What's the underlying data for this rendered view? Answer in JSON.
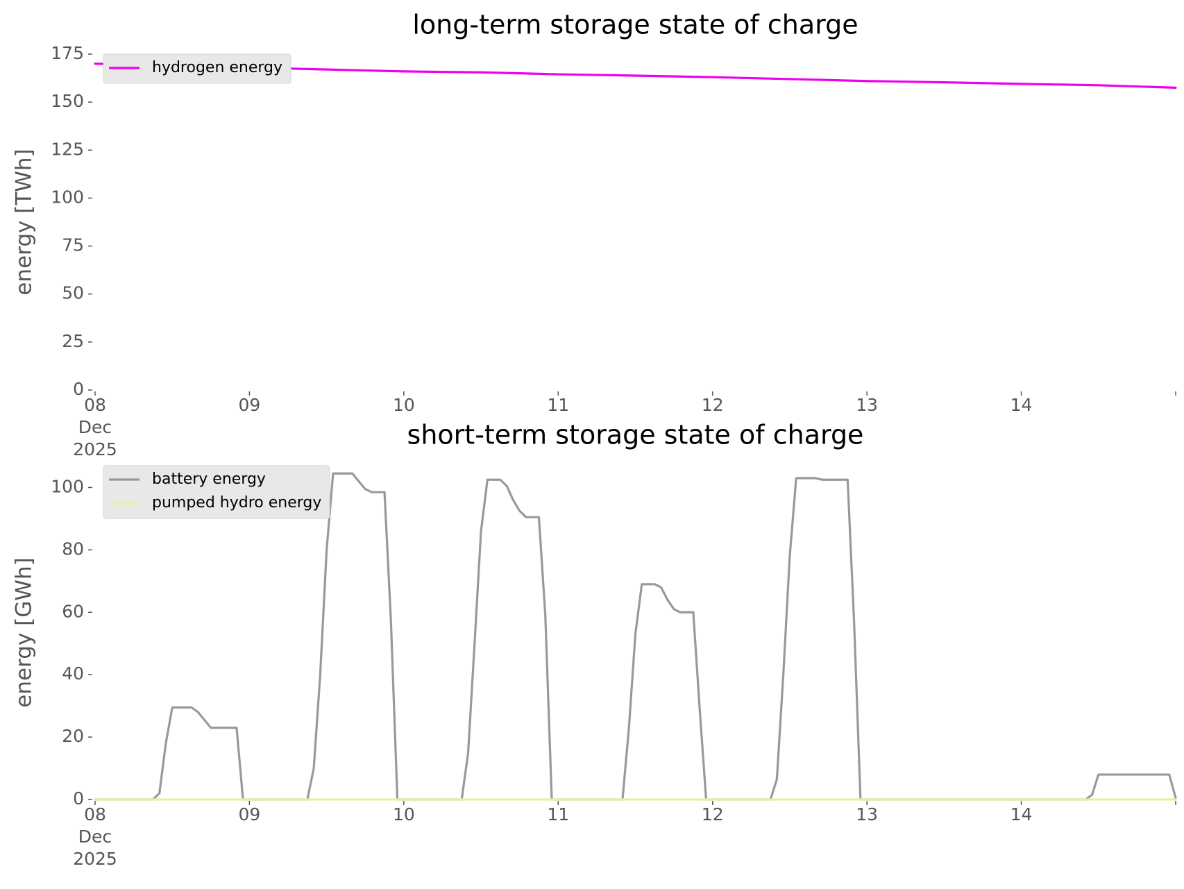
{
  "chart_data": [
    {
      "type": "line",
      "title": "long-term storage state of charge",
      "xlabel": "",
      "ylabel": "energy [TWh]",
      "xlim": [
        "2025-12-08",
        "2025-12-15"
      ],
      "ylim": [
        0,
        175
      ],
      "yticks": [
        0,
        25,
        50,
        75,
        100,
        125,
        150,
        175
      ],
      "xtick_labels": [
        [
          "08",
          "Dec",
          "2025"
        ],
        [
          "09"
        ],
        [
          "10"
        ],
        [
          "11"
        ],
        [
          "12"
        ],
        [
          "13"
        ],
        [
          "14"
        ],
        [
          ""
        ]
      ],
      "grid": false,
      "legend": "top-left",
      "series": [
        {
          "name": "hydrogen energy",
          "color": "#ee00ee",
          "points": [
            [
              "2025-12-08T00:00",
              170
            ],
            [
              "2025-12-08T12:00",
              169
            ],
            [
              "2025-12-09T00:00",
              168
            ],
            [
              "2025-12-09T12:00",
              167
            ],
            [
              "2025-12-10T00:00",
              166
            ],
            [
              "2025-12-10T12:00",
              165.5
            ],
            [
              "2025-12-11T00:00",
              164.5
            ],
            [
              "2025-12-11T12:00",
              163.8
            ],
            [
              "2025-12-12T00:00",
              163
            ],
            [
              "2025-12-12T12:00",
              162
            ],
            [
              "2025-12-13T00:00",
              161
            ],
            [
              "2025-12-13T12:00",
              160.3
            ],
            [
              "2025-12-14T00:00",
              159.5
            ],
            [
              "2025-12-14T12:00",
              158.8
            ],
            [
              "2025-12-15T00:00",
              157.5
            ]
          ]
        }
      ]
    },
    {
      "type": "line",
      "title": "short-term storage state of charge",
      "xlabel": "",
      "ylabel": "energy [GWh]",
      "xlim": [
        "2025-12-08",
        "2025-12-15"
      ],
      "ylim": [
        0,
        107
      ],
      "yticks": [
        0,
        20,
        40,
        60,
        80,
        100
      ],
      "xtick_labels": [
        [
          "08",
          "Dec",
          "2025"
        ],
        [
          "09"
        ],
        [
          "10"
        ],
        [
          "11"
        ],
        [
          "12"
        ],
        [
          "13"
        ],
        [
          "14"
        ],
        [
          ""
        ]
      ],
      "grid": false,
      "legend": "top-left",
      "series": [
        {
          "name": "battery energy",
          "color": "#999999",
          "points": [
            [
              "2025-12-08T00:00",
              0
            ],
            [
              "2025-12-08T09:00",
              0
            ],
            [
              "2025-12-08T10:00",
              2
            ],
            [
              "2025-12-08T11:00",
              18
            ],
            [
              "2025-12-08T12:00",
              29.5
            ],
            [
              "2025-12-08T15:00",
              29.5
            ],
            [
              "2025-12-08T16:00",
              28
            ],
            [
              "2025-12-08T18:00",
              23
            ],
            [
              "2025-12-08T22:00",
              23
            ],
            [
              "2025-12-08T23:00",
              0
            ],
            [
              "2025-12-09T09:00",
              0
            ],
            [
              "2025-12-09T10:00",
              10
            ],
            [
              "2025-12-09T11:00",
              40
            ],
            [
              "2025-12-09T12:00",
              80
            ],
            [
              "2025-12-09T13:00",
              104.5
            ],
            [
              "2025-12-09T16:00",
              104.5
            ],
            [
              "2025-12-09T18:00",
              99.5
            ],
            [
              "2025-12-09T19:00",
              98.5
            ],
            [
              "2025-12-09T21:00",
              98.5
            ],
            [
              "2025-12-09T22:00",
              57
            ],
            [
              "2025-12-09T23:00",
              0
            ],
            [
              "2025-12-10T09:00",
              0
            ],
            [
              "2025-12-10T10:00",
              15
            ],
            [
              "2025-12-10T11:00",
              50
            ],
            [
              "2025-12-10T12:00",
              86
            ],
            [
              "2025-12-10T13:00",
              102.5
            ],
            [
              "2025-12-10T15:00",
              102.5
            ],
            [
              "2025-12-10T16:00",
              100.5
            ],
            [
              "2025-12-10T17:00",
              96
            ],
            [
              "2025-12-10T18:00",
              92.5
            ],
            [
              "2025-12-10T19:00",
              90.5
            ],
            [
              "2025-12-10T21:00",
              90.5
            ],
            [
              "2025-12-10T22:00",
              59
            ],
            [
              "2025-12-10T23:00",
              0
            ],
            [
              "2025-12-11T10:00",
              0
            ],
            [
              "2025-12-11T11:00",
              23
            ],
            [
              "2025-12-11T12:00",
              53
            ],
            [
              "2025-12-11T13:00",
              69
            ],
            [
              "2025-12-11T15:00",
              69
            ],
            [
              "2025-12-11T16:00",
              68
            ],
            [
              "2025-12-11T17:00",
              64
            ],
            [
              "2025-12-11T18:00",
              61
            ],
            [
              "2025-12-11T19:00",
              60
            ],
            [
              "2025-12-11T21:00",
              60
            ],
            [
              "2025-12-11T22:00",
              29
            ],
            [
              "2025-12-11T23:00",
              0
            ],
            [
              "2025-12-12T09:00",
              0
            ],
            [
              "2025-12-12T10:00",
              6.5
            ],
            [
              "2025-12-12T11:00",
              40
            ],
            [
              "2025-12-12T12:00",
              78
            ],
            [
              "2025-12-12T13:00",
              103
            ],
            [
              "2025-12-12T16:00",
              103
            ],
            [
              "2025-12-12T17:00",
              102.5
            ],
            [
              "2025-12-12T21:00",
              102.5
            ],
            [
              "2025-12-12T22:00",
              57
            ],
            [
              "2025-12-12T23:00",
              0
            ],
            [
              "2025-12-14T10:00",
              0
            ],
            [
              "2025-12-14T11:00",
              1.5
            ],
            [
              "2025-12-14T12:00",
              8
            ],
            [
              "2025-12-14T22:00",
              8
            ],
            [
              "2025-12-14T23:00",
              8
            ],
            [
              "2025-12-15T00:00",
              0.5
            ]
          ]
        },
        {
          "name": "pumped hydro energy",
          "color": "#ddf5a3",
          "points": [
            [
              "2025-12-08T00:00",
              0
            ],
            [
              "2025-12-15T00:00",
              0
            ]
          ]
        }
      ]
    }
  ]
}
